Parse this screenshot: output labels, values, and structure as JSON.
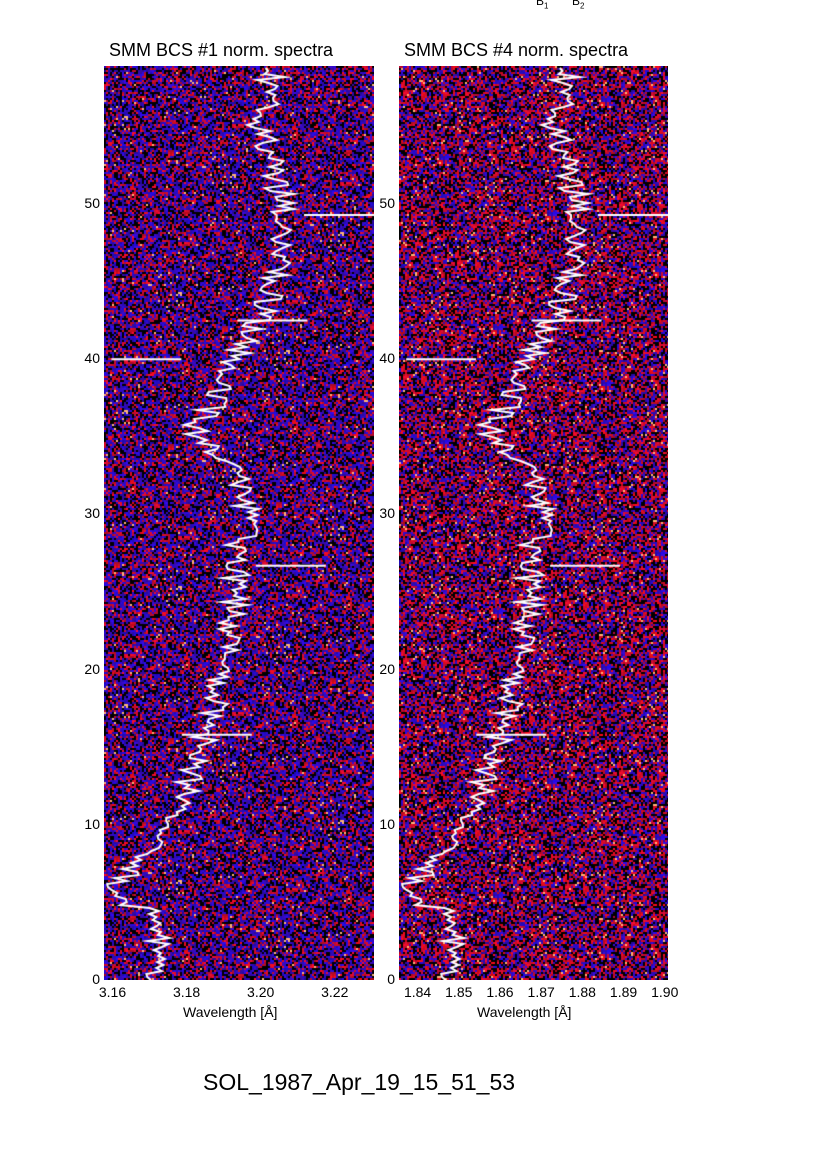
{
  "header_labels": {
    "b1": "B",
    "b1_sub": "1",
    "b2": "B",
    "b2_sub": "2"
  },
  "main_title": "SOL_1987_Apr_19_15_51_53",
  "chart_data": [
    {
      "type": "heatmap",
      "title": "SMM BCS #1 norm. spectra",
      "xlabel": "Wavelength [Å]",
      "ylabel": "",
      "xlim": [
        3.1576,
        3.2305
      ],
      "ylim": [
        0,
        58.9
      ],
      "xticks": [
        "3.16",
        "3.18",
        "3.20",
        "3.22"
      ],
      "xtick_values": [
        3.16,
        3.18,
        3.2,
        3.22
      ],
      "yticks": [
        "0",
        "10",
        "20",
        "30",
        "40",
        "50"
      ],
      "yticks_values": [
        0,
        10,
        20,
        30,
        40,
        50
      ],
      "colormap": [
        "#000000",
        "#1a0fd0",
        "#d01010",
        "#ffffff"
      ],
      "overlay_curve": {
        "color": "#ffffff",
        "y": [
          0,
          2,
          4,
          5.5,
          7,
          10,
          13,
          15,
          18,
          20,
          23,
          25,
          28,
          30,
          33,
          35.5,
          37,
          40,
          42,
          45,
          48,
          50,
          53,
          55,
          58.5
        ],
        "x": [
          3.172,
          3.171,
          3.174,
          3.159,
          3.165,
          3.176,
          3.181,
          3.184,
          3.188,
          3.19,
          3.192,
          3.193,
          3.194,
          3.197,
          3.193,
          3.182,
          3.187,
          3.193,
          3.198,
          3.204,
          3.205,
          3.206,
          3.202,
          3.2,
          3.203
        ],
        "spikes": [
          {
            "y": 49.3,
            "x": 3.2305
          },
          {
            "y": 42.5,
            "x": 3.2125
          },
          {
            "y": 26.7,
            "x": 3.2175
          },
          {
            "y": 15.8,
            "x": 3.1975
          },
          {
            "y": 40,
            "x": 3.1785
          }
        ]
      }
    },
    {
      "type": "heatmap",
      "title": "SMM BCS #4 norm. spectra",
      "xlabel": "Wavelength [Å]",
      "ylabel": "",
      "xlim": [
        1.8354,
        1.9007
      ],
      "ylim": [
        0,
        58.9
      ],
      "xticks": [
        "1.84",
        "1.85",
        "1.86",
        "1.87",
        "1.88",
        "1.89",
        "1.90"
      ],
      "xtick_values": [
        1.84,
        1.85,
        1.86,
        1.87,
        1.88,
        1.89,
        1.9
      ],
      "yticks": [
        "0",
        "10",
        "20",
        "30",
        "40",
        "50"
      ],
      "yticks_values": [
        0,
        10,
        20,
        30,
        40,
        50
      ],
      "colormap": [
        "#000000",
        "#1a0fd0",
        "#e01010",
        "#ffe0a0"
      ]
    }
  ]
}
